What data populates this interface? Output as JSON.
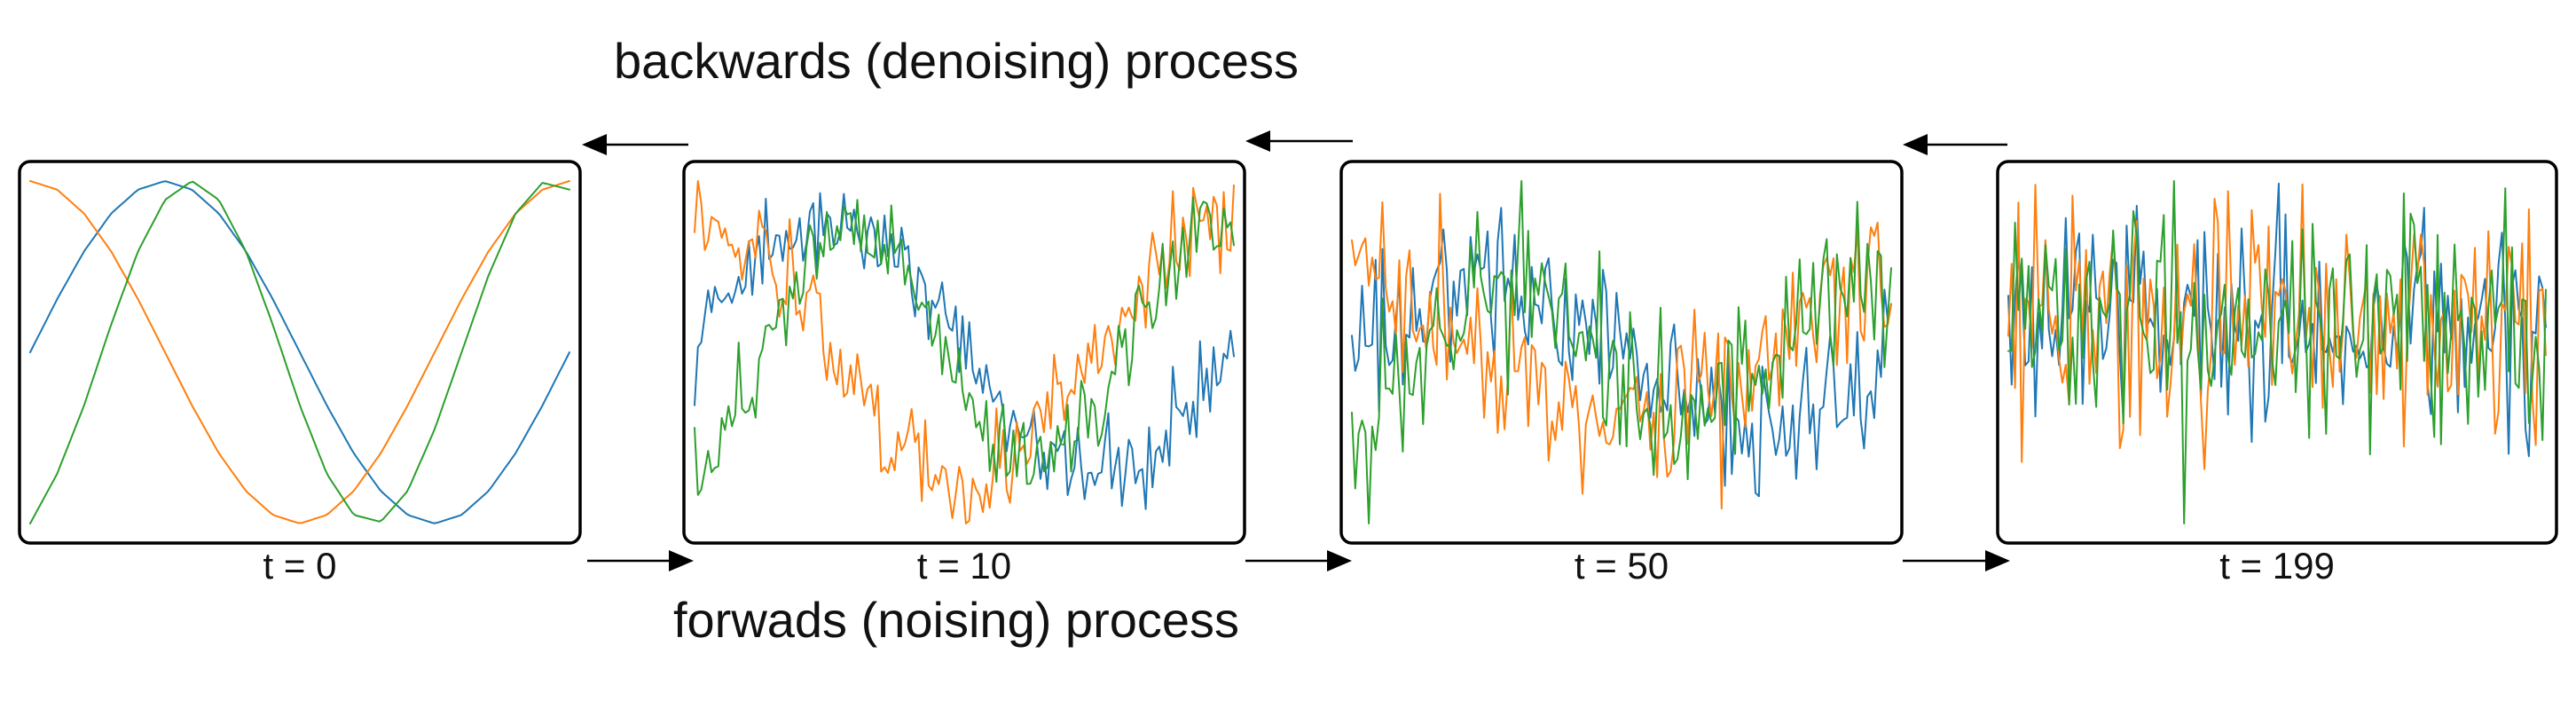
{
  "header": {
    "backward_label": "backwards (denoising) process"
  },
  "footer": {
    "forward_label": "forwads (noising) process"
  },
  "colors": {
    "series_blue": "#1f77b4",
    "series_orange": "#ff7f0e",
    "series_green": "#2ca02c",
    "frame": "#000000",
    "arrow": "#000000",
    "text": "#111111"
  },
  "panels": [
    {
      "label": "t = 0",
      "noise_level": 0.0
    },
    {
      "label": "t = 10",
      "noise_level": 0.25
    },
    {
      "label": "t = 50",
      "noise_level": 0.6
    },
    {
      "label": "t = 199",
      "noise_level": 1.0
    }
  ],
  "chart_data": {
    "type": "line",
    "series": [
      {
        "color": "#1f77b4",
        "values": [
          0.0,
          0.31,
          0.59,
          0.81,
          0.95,
          1.0,
          0.95,
          0.81,
          0.59,
          0.31,
          0.0,
          -0.31,
          -0.59,
          -0.81,
          -0.95,
          -1.0,
          -0.95,
          -0.81,
          -0.59,
          -0.31,
          0.0
        ]
      },
      {
        "color": "#ff7f0e",
        "values": [
          1.0,
          0.95,
          0.81,
          0.59,
          0.31,
          0.0,
          -0.31,
          -0.59,
          -0.81,
          -0.95,
          -1.0,
          -0.95,
          -0.81,
          -0.59,
          -0.31,
          0.0,
          0.31,
          0.59,
          0.81,
          0.95,
          1.0
        ]
      },
      {
        "color": "#2ca02c",
        "values": [
          -1.0,
          -0.71,
          -0.31,
          0.16,
          0.59,
          0.89,
          1.0,
          0.89,
          0.59,
          0.16,
          -0.31,
          -0.71,
          -0.95,
          -0.99,
          -0.81,
          -0.45,
          0.0,
          0.45,
          0.81,
          0.99,
          0.95
        ]
      }
    ]
  }
}
